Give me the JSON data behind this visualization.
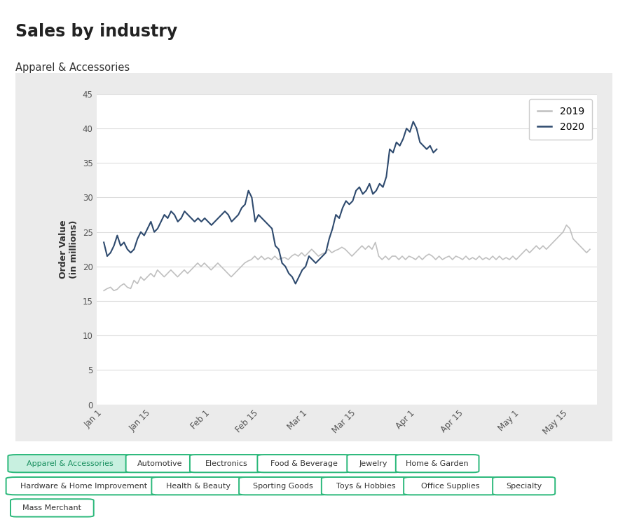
{
  "title": "Sales by industry",
  "subtitle": "Apparel & Accessories",
  "ylabel": "Order Value\n(in millions)",
  "ylim": [
    0,
    45
  ],
  "yticks": [
    0,
    5,
    10,
    15,
    20,
    25,
    30,
    35,
    40,
    45
  ],
  "xtick_labels": [
    "Jan 1",
    "Jan 15",
    "Feb 1",
    "Feb 15",
    "Mar 1",
    "Mar 15",
    "Apr 1",
    "Apr 15",
    "May 1",
    "May 15"
  ],
  "background_color": "#ffffff",
  "outer_box_color": "#ebebeb",
  "chart_bg_color": "#ffffff",
  "line_color_2019": "#c0c0c0",
  "line_color_2020": "#2e4a6e",
  "legend_labels": [
    "2019",
    "2020"
  ],
  "tags": [
    "Apparel & Accessories",
    "Automotive",
    "Electronics",
    "Food & Beverage",
    "Jewelry",
    "Home & Garden",
    "Hardware & Home Improvement",
    "Health & Beauty",
    "Sporting Goods",
    "Toys & Hobbies",
    "Office Supplies",
    "Specialty",
    "Mass Merchant"
  ],
  "active_tag": "Apparel & Accessories",
  "tag_color_active_bg": "#c8f0e0",
  "tag_color_active_border": "#2ab87a",
  "tag_text_active": "#1a9060",
  "tag_color_normal_bg": "#ffffff",
  "tag_color_normal_border": "#2ab87a",
  "tag_text_normal": "#333333",
  "data_2019": [
    16.5,
    16.8,
    17.0,
    16.5,
    16.7,
    17.2,
    17.5,
    17.0,
    16.8,
    18.0,
    17.5,
    18.5,
    18.0,
    18.5,
    19.0,
    18.5,
    19.5,
    19.0,
    18.5,
    19.0,
    19.5,
    19.0,
    18.5,
    19.0,
    19.5,
    19.0,
    19.5,
    20.0,
    20.5,
    20.0,
    20.5,
    20.0,
    19.5,
    20.0,
    20.5,
    20.0,
    19.5,
    19.0,
    18.5,
    19.0,
    19.5,
    20.0,
    20.5,
    20.8,
    21.0,
    21.5,
    21.0,
    21.5,
    21.0,
    21.3,
    21.0,
    21.5,
    21.0,
    21.2,
    21.3,
    21.0,
    21.5,
    21.8,
    21.5,
    22.0,
    21.5,
    22.0,
    22.5,
    22.0,
    21.5,
    21.8,
    22.0,
    22.5,
    22.0,
    22.3,
    22.5,
    22.8,
    22.5,
    22.0,
    21.5,
    22.0,
    22.5,
    23.0,
    22.5,
    23.0,
    22.5,
    23.5,
    21.5,
    21.0,
    21.5,
    21.0,
    21.5,
    21.5,
    21.0,
    21.5,
    21.0,
    21.5,
    21.3,
    21.0,
    21.5,
    21.0,
    21.5,
    21.8,
    21.5,
    21.0,
    21.5,
    21.0,
    21.3,
    21.5,
    21.0,
    21.5,
    21.3,
    21.0,
    21.5,
    21.0,
    21.3,
    21.0,
    21.5,
    21.0,
    21.3,
    21.0,
    21.5,
    21.0,
    21.5,
    21.0,
    21.3,
    21.0,
    21.5,
    21.0,
    21.5,
    22.0,
    22.5,
    22.0,
    22.5,
    23.0,
    22.5,
    23.0,
    22.5,
    23.0,
    23.5,
    24.0,
    24.5,
    25.0,
    26.0,
    25.5,
    24.0,
    23.5,
    23.0,
    22.5,
    22.0,
    22.5
  ],
  "data_2020": [
    23.5,
    21.5,
    22.0,
    23.0,
    24.5,
    23.0,
    23.5,
    22.5,
    22.0,
    22.5,
    24.0,
    25.0,
    24.5,
    25.5,
    26.5,
    25.0,
    25.5,
    26.5,
    27.5,
    27.0,
    28.0,
    27.5,
    26.5,
    27.0,
    28.0,
    27.5,
    27.0,
    26.5,
    27.0,
    26.5,
    27.0,
    26.5,
    26.0,
    26.5,
    27.0,
    27.5,
    28.0,
    27.5,
    26.5,
    27.0,
    27.5,
    28.5,
    29.0,
    31.0,
    30.0,
    26.5,
    27.5,
    27.0,
    26.5,
    26.0,
    25.5,
    23.0,
    22.5,
    20.5,
    20.0,
    19.0,
    18.5,
    17.5,
    18.5,
    19.5,
    20.0,
    21.5,
    21.0,
    20.5,
    21.0,
    21.5,
    22.0,
    24.0,
    25.5,
    27.5,
    27.0,
    28.5,
    29.5,
    29.0,
    29.5,
    31.0,
    31.5,
    30.5,
    31.0,
    32.0,
    30.5,
    31.0,
    32.0,
    31.5,
    33.0,
    37.0,
    36.5,
    38.0,
    37.5,
    38.5,
    40.0,
    39.5,
    41.0,
    40.0,
    38.0,
    37.5,
    37.0,
    37.5,
    36.5,
    37.0
  ]
}
